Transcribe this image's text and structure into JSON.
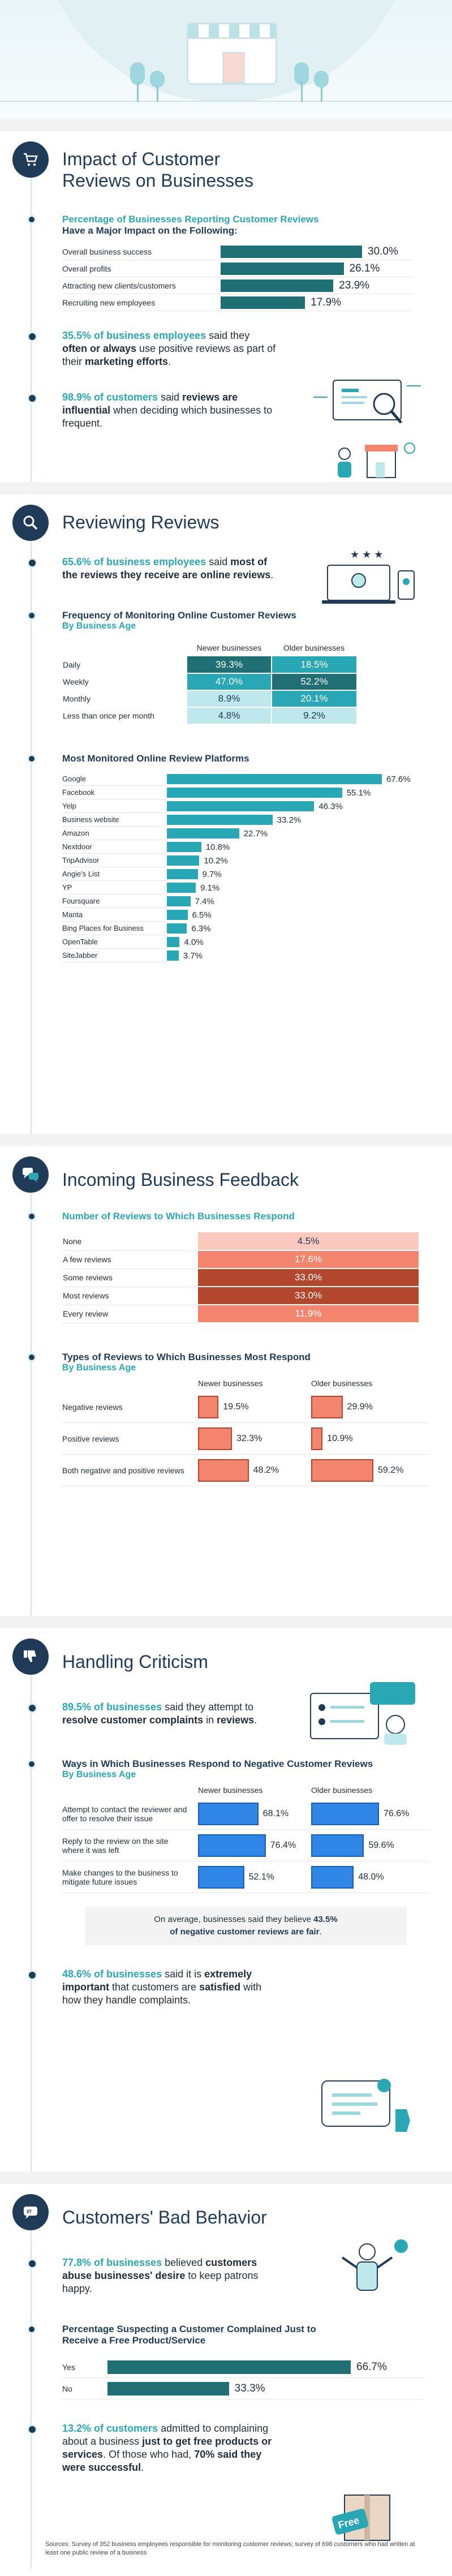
{
  "sections": {
    "impact": {
      "title": "Impact of Customer Reviews on Businesses",
      "chart_title_line1": "Percentage of Businesses Reporting Customer Reviews",
      "chart_title_line2": "Have a Major Impact on the Following:",
      "stat1": {
        "highlight": "35.5% of business employees",
        "text1": " said they ",
        "bold1": "often or always",
        "text2": " use positive reviews as part of their ",
        "bold2": "marketing efforts",
        "text3": "."
      },
      "stat2": {
        "highlight": "98.9% of customers",
        "text1": " said ",
        "bold1": "reviews are influential",
        "text2": " when deciding which businesses to frequent."
      }
    },
    "reviewing": {
      "title": "Reviewing Reviews",
      "stat1": {
        "highlight": "65.6% of business employees",
        "text1": " said ",
        "bold1": "most of the reviews they receive are online reviews",
        "text2": "."
      },
      "freq_title": "Frequency of Monitoring Online Customer Reviews",
      "freq_sub": "By Business Age",
      "platforms_title": "Most Monitored Online Review Platforms"
    },
    "feedback": {
      "title": "Incoming Business Feedback",
      "respond_title": "Number of Reviews to Which Businesses Respond",
      "types_title": "Types of Reviews to Which Businesses Most Respond",
      "types_sub": "By Business Age"
    },
    "criticism": {
      "title": "Handling Criticism",
      "stat1": {
        "highlight": "89.5% of businesses",
        "text1": " said they attempt to ",
        "bold1": "resolve customer complaints",
        "text2": " in ",
        "bold2": "reviews",
        "text3": "."
      },
      "ways_title": "Ways in Which Businesses Respond to Negative Customer Reviews",
      "ways_sub": "By Business Age",
      "note_line1_a": "On average, businesses said they believe ",
      "note_line1_b": "43.5%",
      "note_line2": "of negative customer reviews are fair",
      "note_end": ".",
      "stat2": {
        "highlight": "48.6% of businesses",
        "text1": " said it is ",
        "bold1": "extremely important",
        "text2": " that customers are ",
        "bold2": "satisfied",
        "text3": " with how they handle complaints."
      }
    },
    "bad": {
      "title": "Customers' Bad Behavior",
      "stat1": {
        "highlight": "77.8% of businesses",
        "text1": " believed ",
        "bold1": "customers abuse businesses' desire",
        "text2": " to keep patrons happy."
      },
      "free_title_line1": "Percentage Suspecting a Customer Complained Just to",
      "free_title_line2": "Receive a Free Product/Service",
      "stat2": {
        "highlight": "13.2% of customers",
        "text1": " admitted to complaining about a business ",
        "bold1": "just to get free products or services",
        "text2": ". Of those who had, ",
        "bold2": "70% said they were successful",
        "text3": "."
      },
      "free_tag": "Free"
    }
  },
  "sources": "Sources: Survey of 352 business employees responsible for monitoring customer reviews; survey of 698 customers who had written at least one public review of a business",
  "chart_data": [
    {
      "type": "bar",
      "title": "Percentage of Businesses Reporting Customer Reviews Have a Major Impact on the Following:",
      "categories": [
        "Overall business success",
        "Overall profits",
        "Attracting new clients/customers",
        "Recruiting new employees"
      ],
      "values": [
        30.0,
        26.1,
        23.9,
        17.9
      ],
      "unit": "%",
      "color": "#1f6f75"
    },
    {
      "type": "table",
      "title": "Frequency of Monitoring Online Customer Reviews",
      "subtitle": "By Business Age",
      "categories": [
        "Daily",
        "Weekly",
        "Monthly",
        "Less than once per month"
      ],
      "series": [
        {
          "name": "Newer businesses",
          "values": [
            39.3,
            47.0,
            8.9,
            4.8
          ]
        },
        {
          "name": "Older businesses",
          "values": [
            18.5,
            52.2,
            20.1,
            9.2
          ]
        }
      ],
      "unit": "%"
    },
    {
      "type": "bar",
      "title": "Most Monitored Online Review Platforms",
      "categories": [
        "Google",
        "Facebook",
        "Yelp",
        "Business website",
        "Amazon",
        "Nextdoor",
        "TripAdvisor",
        "Angie's List",
        "YP",
        "Foursquare",
        "Manta",
        "Bing Places for Business",
        "OpenTable",
        "SiteJabber"
      ],
      "values": [
        67.6,
        55.1,
        46.3,
        33.2,
        22.7,
        10.8,
        10.2,
        9.7,
        9.1,
        7.4,
        6.5,
        6.3,
        4.0,
        3.7
      ],
      "unit": "%",
      "color": "#2aa7b4"
    },
    {
      "type": "table",
      "title": "Number of Reviews to Which Businesses Respond",
      "categories": [
        "None",
        "A few reviews",
        "Some reviews",
        "Most reviews",
        "Every review"
      ],
      "values": [
        4.5,
        17.6,
        33.0,
        33.0,
        11.9
      ],
      "unit": "%"
    },
    {
      "type": "bar",
      "title": "Types of Reviews to Which Businesses Most Respond",
      "subtitle": "By Business Age",
      "categories": [
        "Negative reviews",
        "Positive reviews",
        "Both negative and positive reviews"
      ],
      "series": [
        {
          "name": "Newer businesses",
          "values": [
            19.5,
            32.3,
            48.2
          ]
        },
        {
          "name": "Older businesses",
          "values": [
            29.9,
            10.9,
            59.2
          ]
        }
      ],
      "unit": "%",
      "color": "#f3856f"
    },
    {
      "type": "bar",
      "title": "Ways in Which Businesses Respond to Negative Customer Reviews",
      "subtitle": "By Business Age",
      "categories": [
        "Attempt to contact the reviewer and offer to resolve their issue",
        "Reply to the review on the site where it was left",
        "Make changes to the business to mitigate future issues"
      ],
      "series": [
        {
          "name": "Newer businesses",
          "values": [
            68.1,
            76.4,
            52.1
          ]
        },
        {
          "name": "Older businesses",
          "values": [
            76.6,
            59.6,
            48.0
          ]
        }
      ],
      "unit": "%",
      "color": "#2f86e6"
    },
    {
      "type": "bar",
      "title": "Percentage Suspecting a Customer Complained Just to Receive a Free Product/Service",
      "categories": [
        "Yes",
        "No"
      ],
      "values": [
        66.7,
        33.3
      ],
      "unit": "%",
      "color": "#1f6f75"
    }
  ],
  "colors": {
    "navy": "#1f3b57",
    "teal": "#2aa7b4",
    "teal_dark": "#1f6f75",
    "salmon": "#f3856f",
    "blue": "#2f86e6"
  },
  "icons": {
    "impact": "shopping-cart-icon",
    "reviewing": "magnifier-icon",
    "feedback": "speech-bubbles-icon",
    "criticism": "thumbs-down-icon",
    "bad": "angry-speech-icon"
  }
}
